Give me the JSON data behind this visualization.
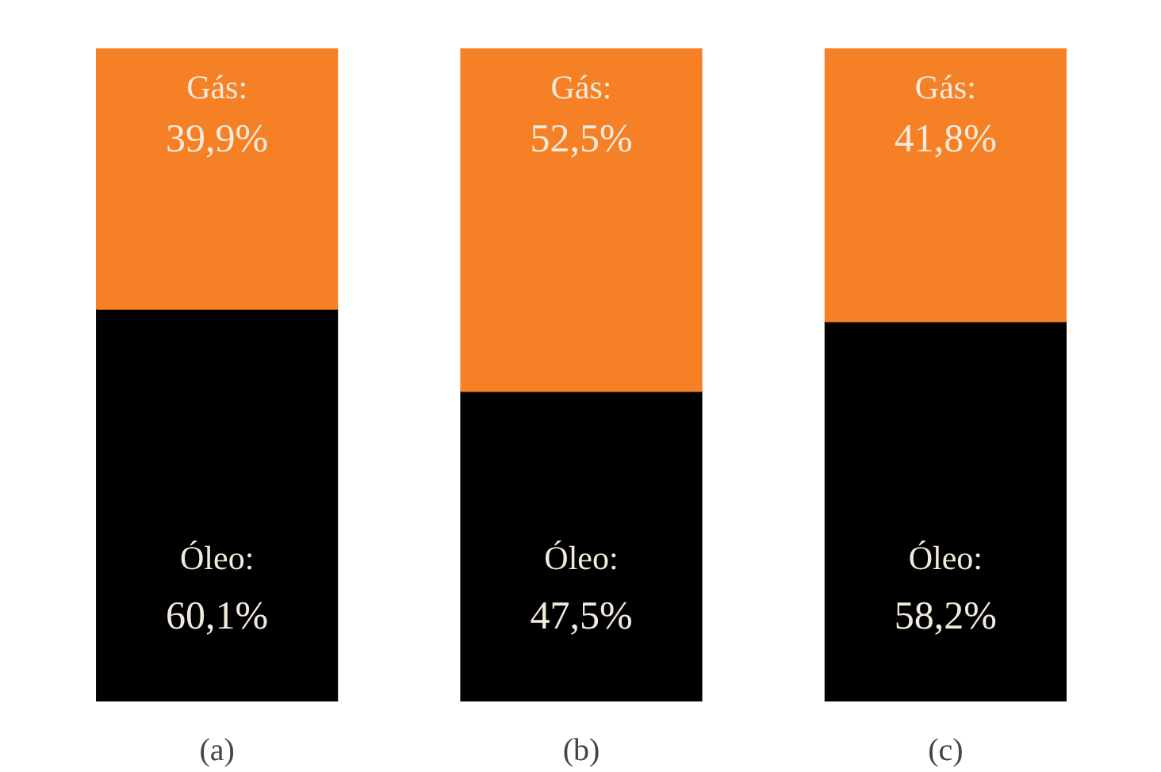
{
  "chart_data": {
    "type": "bar",
    "stacked": true,
    "categories": [
      "(a)",
      "(b)",
      "(c)"
    ],
    "series": [
      {
        "name": "Óleo:",
        "color": "#000000",
        "values": [
          60.1,
          47.5,
          58.2
        ],
        "value_labels": [
          "60,1%",
          "47,5%",
          "58,2%"
        ]
      },
      {
        "name": "Gás:",
        "color": "#f58025",
        "values": [
          39.9,
          52.5,
          41.8
        ],
        "value_labels": [
          "39,9%",
          "52,5%",
          "41,8%"
        ]
      }
    ]
  }
}
